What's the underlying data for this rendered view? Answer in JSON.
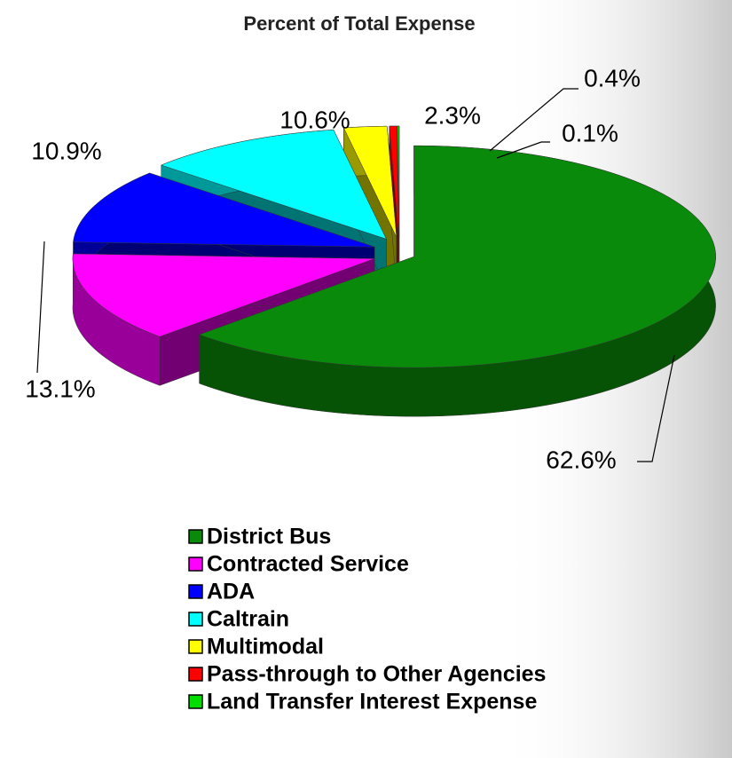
{
  "chart_data": {
    "type": "pie3d",
    "title": "Percent of Total Expense",
    "categories": [
      "District Bus",
      "Contracted Service",
      "ADA",
      "Caltrain",
      "Multimodal",
      "Pass-through to Other Agencies",
      "Land Transfer Interest Expense"
    ],
    "values": [
      62.6,
      13.1,
      10.9,
      10.6,
      2.3,
      0.4,
      0.1
    ],
    "value_labels": [
      "62.6%",
      "13.1%",
      "10.9%",
      "10.6%",
      "2.3%",
      "0.4%",
      "0.1%"
    ],
    "colors": [
      "#0a8a0a",
      "#ff00ff",
      "#0000ff",
      "#00ffff",
      "#ffff00",
      "#ff0000",
      "#00dd00"
    ]
  }
}
